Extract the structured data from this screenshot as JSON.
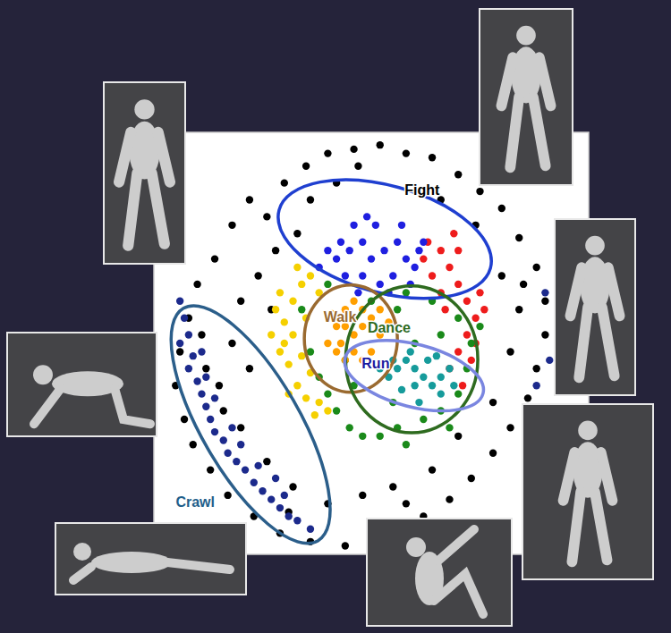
{
  "chart_data": {
    "type": "scatter",
    "xlim": [
      0,
      100
    ],
    "ylim": [
      0,
      100
    ],
    "tick_labels": false,
    "grid": false,
    "marker": "circle",
    "series": [
      {
        "color": "#000000",
        "x": [
          30,
          35,
          40,
          46,
          52,
          58,
          64,
          70,
          75,
          22,
          26,
          18,
          80,
          84,
          88,
          90,
          14,
          10,
          8,
          6,
          5,
          7,
          9,
          13,
          17,
          23,
          29,
          36,
          44,
          50,
          56,
          62,
          68,
          73,
          78,
          82,
          86,
          88,
          90,
          20,
          24,
          28,
          18,
          15,
          20,
          26,
          32,
          40,
          48,
          55,
          64,
          70,
          78,
          82,
          84,
          80,
          74,
          66,
          36,
          42,
          12,
          16,
          22,
          11,
          31,
          58,
          85,
          47,
          33,
          27
        ],
        "values": [
          88,
          92,
          95,
          96,
          97,
          95,
          94,
          90,
          86,
          84,
          80,
          78,
          82,
          75,
          68,
          60,
          70,
          64,
          56,
          48,
          40,
          32,
          26,
          20,
          14,
          9,
          5,
          3,
          2,
          4,
          6,
          9,
          13,
          18,
          24,
          30,
          37,
          44,
          52,
          60,
          66,
          72,
          50,
          40,
          30,
          22,
          16,
          12,
          14,
          16,
          20,
          28,
          36,
          48,
          58,
          66,
          78,
          84,
          84,
          88,
          44,
          34,
          44,
          52,
          10,
          12,
          64,
          92,
          76,
          58
        ]
      },
      {
        "color": "#1c2a8c",
        "x": [
          6,
          7,
          8,
          6,
          9,
          8,
          10,
          11,
          12,
          13,
          14,
          16,
          17,
          19,
          21,
          23,
          25,
          27,
          29,
          31,
          33,
          36,
          11,
          14,
          18,
          24,
          30,
          12,
          20,
          28,
          90,
          88,
          91
        ],
        "values": [
          60,
          56,
          52,
          50,
          47,
          44,
          41,
          38,
          35,
          32,
          29,
          27,
          24,
          22,
          20,
          17,
          15,
          13,
          11,
          9,
          8,
          6,
          48,
          37,
          30,
          21,
          14,
          42,
          26,
          18,
          62,
          40,
          46
        ]
      },
      {
        "color": "#f5d000",
        "x": [
          30,
          32,
          34,
          36,
          30,
          31,
          33,
          35,
          37,
          28,
          29,
          32,
          34,
          36,
          38,
          33,
          27,
          31,
          35,
          38,
          40,
          29
        ],
        "values": [
          55,
          60,
          64,
          66,
          50,
          45,
          40,
          37,
          33,
          58,
          48,
          52,
          47,
          43,
          62,
          68,
          52,
          38,
          56,
          36,
          34,
          62
        ]
      },
      {
        "color": "#ee1c1c",
        "x": [
          62,
          66,
          68,
          70,
          72,
          74,
          72,
          70,
          68,
          73,
          75,
          64,
          70,
          66,
          74,
          71,
          67,
          76,
          63,
          69
        ],
        "values": [
          70,
          72,
          68,
          64,
          60,
          56,
          52,
          48,
          44,
          46,
          62,
          66,
          72,
          62,
          50,
          40,
          58,
          58,
          74,
          76
        ]
      },
      {
        "color": "#1f1fe0",
        "x": [
          42,
          45,
          48,
          50,
          53,
          56,
          58,
          60,
          55,
          52,
          48,
          44,
          40,
          46,
          51,
          57,
          62,
          38,
          54,
          59,
          47,
          43,
          49,
          61
        ],
        "values": [
          70,
          72,
          74,
          70,
          72,
          74,
          70,
          68,
          66,
          64,
          66,
          66,
          72,
          78,
          78,
          78,
          74,
          68,
          62,
          64,
          62,
          74,
          80,
          72
        ]
      },
      {
        "color": "#1a8a1a",
        "x": [
          38,
          40,
          42,
          45,
          48,
          52,
          56,
          62,
          66,
          70,
          72,
          73,
          70,
          64,
          58,
          50,
          56,
          46,
          60,
          66,
          44,
          36,
          55,
          68,
          58,
          75,
          34,
          40
        ],
        "values": [
          42,
          38,
          34,
          30,
          28,
          28,
          30,
          32,
          34,
          38,
          44,
          50,
          56,
          60,
          62,
          60,
          58,
          40,
          50,
          52,
          46,
          48,
          36,
          30,
          26,
          54,
          58,
          64
        ]
      },
      {
        "color": "#ff9f00",
        "x": [
          40,
          42,
          44,
          46,
          48,
          50,
          52,
          50,
          48,
          44,
          42,
          46,
          48,
          44,
          52,
          41,
          54,
          46,
          43
        ],
        "values": [
          50,
          54,
          58,
          60,
          58,
          56,
          52,
          48,
          46,
          46,
          48,
          52,
          54,
          54,
          58,
          57,
          55,
          48,
          50
        ]
      },
      {
        "color": "#169b9b",
        "x": [
          54,
          56,
          58,
          60,
          62,
          64,
          66,
          68,
          60,
          57,
          63,
          66,
          59,
          55,
          69,
          61,
          65,
          52
        ],
        "values": [
          42,
          44,
          46,
          44,
          42,
          40,
          42,
          44,
          40,
          39,
          46,
          38,
          48,
          46,
          40,
          36,
          47,
          44
        ]
      }
    ],
    "annotations": [
      {
        "label": "Fight",
        "colors": [
          "#1f3fd0",
          "#000000"
        ],
        "x": [
          28.8,
          77.4
        ],
        "y": [
          81.6,
          67.8
        ],
        "r": 12.3,
        "label_x": 61.7,
        "label_y": 86
      },
      {
        "label": "Walk",
        "colors": [
          "#9a6a30",
          "#9a6a30"
        ],
        "x": [
          45.3,
          45.3
        ],
        "y": [
          63.8,
          38.4
        ],
        "r": 10.7,
        "label_x": 42.8,
        "label_y": 56
      },
      {
        "label": "Dance",
        "colors": [
          "#2e6b1f",
          "#2e6b1f"
        ],
        "x": [
          59.3,
          59.3
        ],
        "y": [
          63.6,
          28.8
        ],
        "r": 15.2,
        "label_x": 54.1,
        "label_y": 53.4
      },
      {
        "label": "Run",
        "colors": [
          "#7a86e0",
          "#1a1aa0"
        ],
        "x": [
          44,
          75.7
        ],
        "y": [
          46.6,
          38.1
        ],
        "r": 7.2,
        "label_x": 51,
        "label_y": 45
      },
      {
        "label": "Crawl",
        "colors": [
          "#2b5e8a",
          "#1f5f8b"
        ],
        "x": [
          6.8,
          37.7
        ],
        "y": [
          58.3,
          3.2
        ],
        "r": 11.3,
        "label_x": 9.5,
        "label_y": 12.1
      }
    ]
  }
}
